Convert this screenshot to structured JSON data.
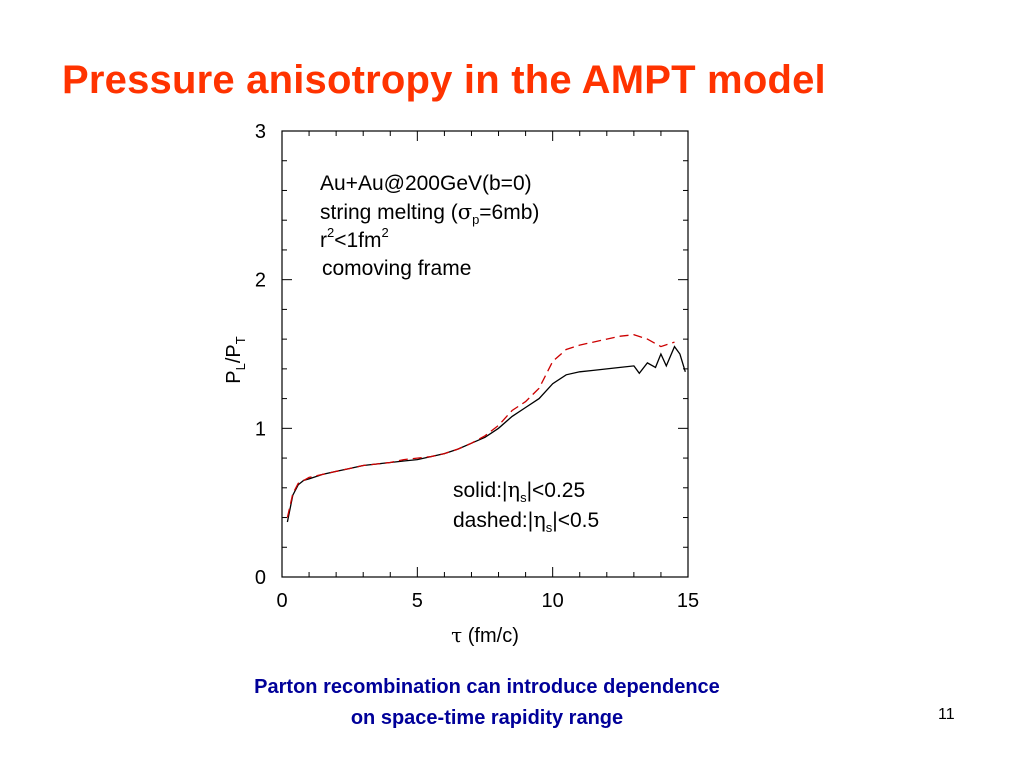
{
  "slide": {
    "title": "Pressure anisotropy in the AMPT model",
    "caption_line1": "Parton recombination can introduce dependence",
    "caption_line2": "on space-time rapidity range",
    "page_number": "11"
  },
  "annotations": {
    "line1": "Au+Au@200GeV(b=0)",
    "line2_prefix": "string melting (",
    "line2_sigma": "σ",
    "line2_sub": "p",
    "line2_suffix": "=6mb)",
    "line3_r": "r",
    "line3_sup1": "2",
    "line3_mid": "<1fm",
    "line3_sup2": "2",
    "line4": "comoving frame",
    "legend_solid_prefix": "solid:|",
    "legend_eta": "η",
    "legend_sub": "s",
    "legend_solid_suffix": "|<0.25",
    "legend_dashed_prefix": "dashed:|",
    "legend_dashed_suffix": "|<0.5"
  },
  "chart_data": {
    "type": "line",
    "xlabel_symbol": "τ",
    "xlabel_text": " (fm/c)",
    "ylabel_main": "P",
    "ylabel_sub1": "L",
    "ylabel_slash": "/P",
    "ylabel_sub2": "T",
    "xlim": [
      0,
      15
    ],
    "ylim": [
      0,
      3
    ],
    "x_ticks": [
      0,
      5,
      10,
      15
    ],
    "x_tick_labels": [
      "0",
      "5",
      "10",
      "15"
    ],
    "y_ticks": [
      0,
      1,
      2,
      3
    ],
    "y_tick_labels": [
      "0",
      "1",
      "2",
      "3"
    ],
    "grid": false,
    "colors": {
      "solid": "#000000",
      "dashed": "#cc0000"
    },
    "series": [
      {
        "style": "solid",
        "x": [
          0.2,
          0.4,
          0.6,
          0.8,
          1.0,
          1.5,
          2.0,
          2.5,
          3.0,
          3.5,
          4.0,
          4.5,
          5.0,
          5.5,
          6.0,
          6.5,
          7.0,
          7.5,
          8.0,
          8.5,
          9.0,
          9.5,
          10.0,
          10.5,
          11.0,
          11.5,
          12.0,
          12.5,
          13.0,
          13.2,
          13.5,
          13.8,
          14.0,
          14.2,
          14.5,
          14.7,
          14.9
        ],
        "y": [
          0.37,
          0.55,
          0.62,
          0.65,
          0.66,
          0.69,
          0.71,
          0.73,
          0.75,
          0.76,
          0.77,
          0.78,
          0.79,
          0.81,
          0.83,
          0.86,
          0.9,
          0.94,
          1.0,
          1.08,
          1.14,
          1.2,
          1.3,
          1.36,
          1.38,
          1.39,
          1.4,
          1.41,
          1.42,
          1.37,
          1.44,
          1.41,
          1.5,
          1.42,
          1.55,
          1.5,
          1.38
        ]
      },
      {
        "style": "dashed",
        "x": [
          0.2,
          0.4,
          0.6,
          0.8,
          1.0,
          1.5,
          2.0,
          2.5,
          3.0,
          3.5,
          4.0,
          4.5,
          5.0,
          5.5,
          6.0,
          6.5,
          7.0,
          7.5,
          8.0,
          8.5,
          9.0,
          9.5,
          10.0,
          10.5,
          11.0,
          11.5,
          12.0,
          12.5,
          13.0,
          13.5,
          14.0,
          14.5
        ],
        "y": [
          0.4,
          0.56,
          0.63,
          0.65,
          0.67,
          0.69,
          0.71,
          0.73,
          0.75,
          0.76,
          0.77,
          0.79,
          0.8,
          0.81,
          0.83,
          0.86,
          0.9,
          0.95,
          1.02,
          1.12,
          1.18,
          1.27,
          1.45,
          1.53,
          1.56,
          1.58,
          1.6,
          1.62,
          1.63,
          1.6,
          1.55,
          1.58
        ]
      }
    ]
  }
}
